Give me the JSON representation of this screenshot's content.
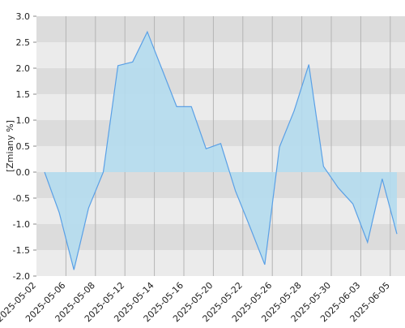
{
  "chart_data": {
    "type": "area",
    "y_label": "[Zmiany %]",
    "x_labels": [
      "2025-05-02",
      "2025-05-06",
      "2025-05-08",
      "2025-05-12",
      "2025-05-14",
      "2025-05-16",
      "2025-05-20",
      "2025-05-22",
      "2025-05-26",
      "2025-05-28",
      "2025-05-30",
      "2025-06-03",
      "2025-06-05"
    ],
    "values": [
      0.0,
      -0.78,
      -1.88,
      -0.69,
      0.0,
      2.05,
      2.12,
      2.7,
      1.98,
      1.26,
      1.26,
      0.45,
      0.55,
      -0.36,
      -1.06,
      -1.78,
      0.48,
      1.18,
      2.07,
      0.11,
      -0.3,
      -0.61,
      -1.35,
      -0.13,
      -1.19
    ],
    "line_color": "#5aa0e6",
    "fill_color": "#b4dcee",
    "ylim": [
      -2.0,
      3.0
    ],
    "yticks": [
      {
        "value": 3.0,
        "label": "3.0"
      },
      2.5,
      {
        "value": 2.0,
        "label": "2.0"
      },
      1.5,
      {
        "value": 1.0,
        "label": "1.0"
      },
      0.5,
      {
        "value": 0.0,
        "label": "0.0"
      },
      -0.5,
      {
        "value": -1.0,
        "label": "-1.0"
      },
      -1.5,
      {
        "value": -2.0,
        "label": "-2.0"
      }
    ],
    "grid": true
  }
}
